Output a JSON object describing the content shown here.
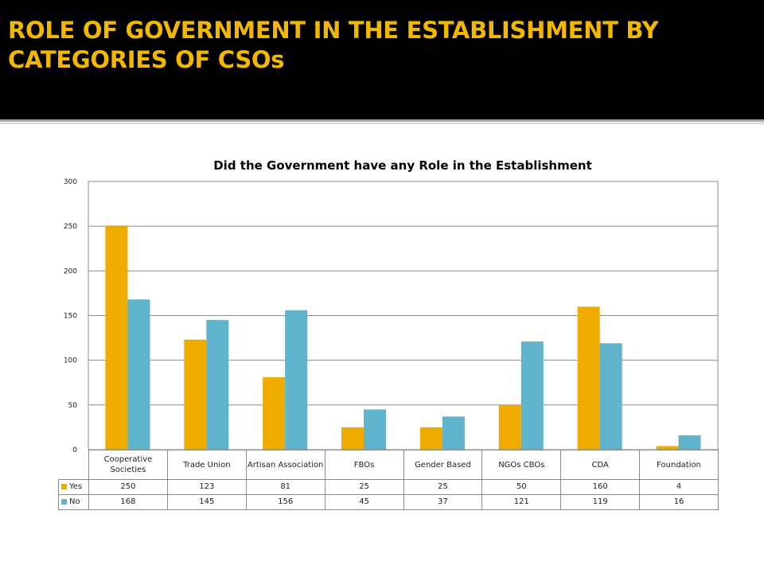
{
  "slide": {
    "title": "ROLE OF GOVERNMENT IN THE ESTABLISHMENT BY CATEGORIES OF CSOs",
    "title_color": "#f2b800",
    "header_background": "#000000"
  },
  "chart_data": {
    "type": "bar",
    "title": "Did the Government have any Role in the Establishment",
    "xlabel": "",
    "ylabel": "",
    "categories": [
      "Cooperative Societies",
      "Trade Union",
      "Artisan Association",
      "FBOs",
      "Gender Based",
      "NGOs CBOs",
      "CDA",
      "Foundation"
    ],
    "series": [
      {
        "name": "Yes",
        "color": "#f0ab00",
        "values": [
          250,
          123,
          81,
          25,
          25,
          50,
          160,
          4
        ]
      },
      {
        "name": "No",
        "color": "#5fb4cc",
        "values": [
          168,
          145,
          156,
          45,
          37,
          121,
          119,
          16
        ]
      }
    ],
    "ylim": [
      0,
      300
    ],
    "yticks": [
      0,
      50,
      100,
      150,
      200,
      250,
      300
    ],
    "grid": true,
    "legend": "data-table"
  }
}
